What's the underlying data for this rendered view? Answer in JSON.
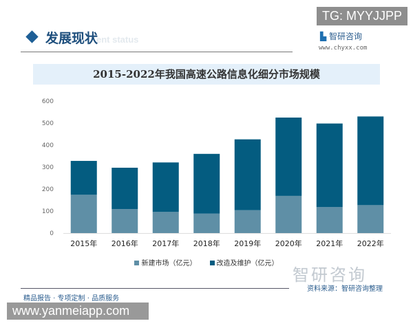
{
  "watermark_top": "TG: MYYJJPP",
  "section": {
    "title": "发展现状",
    "subtitle": "ent status"
  },
  "brand": {
    "name": "智研咨询",
    "url": "www.chyxx.com"
  },
  "footer": {
    "left": "精品报告 · 专项定制 · 品质服务",
    "source": "资料来源：智研咨询整理",
    "logo": "智研咨询"
  },
  "watermark_bottom": "www.yanmeiapp.com",
  "colors": {
    "new": "#5f8fa6",
    "renovation": "#045c80"
  },
  "chart_data": {
    "type": "bar",
    "stacked": true,
    "title": "2015-2022年我国高速公路信息化细分市场规模",
    "categories": [
      "2015年",
      "2016年",
      "2017年",
      "2018年",
      "2019年",
      "2020年",
      "2021年",
      "2022年"
    ],
    "series": [
      {
        "name": "新建市场（亿元）",
        "values": [
          174,
          109,
          96,
          89,
          104,
          169,
          118,
          127
        ]
      },
      {
        "name": "改造及维护（亿元）",
        "values": [
          154,
          188,
          225,
          271,
          322,
          356,
          380,
          403
        ]
      }
    ],
    "ylim": [
      0,
      600
    ],
    "yticks": [
      0,
      100,
      200,
      300,
      400,
      500,
      600
    ],
    "grid": false,
    "legend": "bottom"
  }
}
